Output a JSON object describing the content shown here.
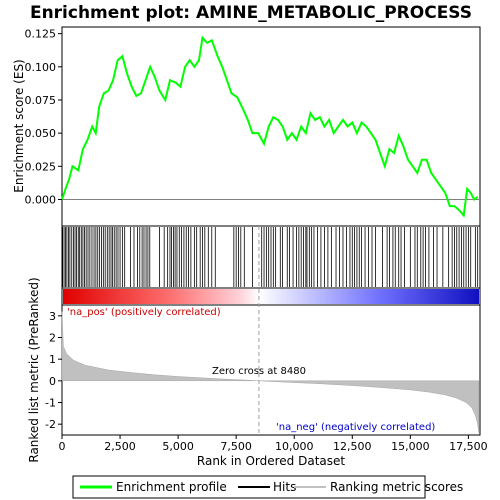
{
  "chart_data": {
    "type": "line",
    "title": "Enrichment plot: AMINE_METABOLIC_PROCESS",
    "xlabel": "Rank in Ordered Dataset",
    "ylabel_top": "Enrichment score (ES)",
    "ylabel_bottom": "Ranked list metric (PreRanked)",
    "x_range": [
      0,
      18000
    ],
    "x_ticks": [
      0,
      2500,
      5000,
      7500,
      10000,
      12500,
      15000,
      17500
    ],
    "x_tick_labels": [
      "0",
      "2,500",
      "5,000",
      "7,500",
      "10,000",
      "12,500",
      "15,000",
      "17,500"
    ],
    "es_ylim": [
      -0.02,
      0.13
    ],
    "es_ticks": [
      0.0,
      0.025,
      0.05,
      0.075,
      0.1,
      0.125
    ],
    "es_tick_labels": [
      "0.000",
      "0.025",
      "0.050",
      "0.075",
      "0.100",
      "0.125"
    ],
    "metric_ylim": [
      -2.5,
      3.5
    ],
    "metric_ticks": [
      -2,
      -1,
      0,
      1,
      2,
      3
    ],
    "metric_tick_labels": [
      "-2",
      "-1",
      "0",
      "1",
      "2",
      "3"
    ],
    "zero_cross": 8480,
    "zero_cross_label": "Zero cross at 8480",
    "pos_label": "'na_pos' (positively correlated)",
    "neg_label": "'na_neg' (negatively correlated)",
    "es_curve": [
      [
        0,
        0.0
      ],
      [
        150,
        0.008
      ],
      [
        300,
        0.015
      ],
      [
        450,
        0.025
      ],
      [
        700,
        0.022
      ],
      [
        900,
        0.038
      ],
      [
        1100,
        0.045
      ],
      [
        1300,
        0.055
      ],
      [
        1450,
        0.05
      ],
      [
        1600,
        0.07
      ],
      [
        1800,
        0.08
      ],
      [
        2000,
        0.082
      ],
      [
        2200,
        0.09
      ],
      [
        2400,
        0.105
      ],
      [
        2600,
        0.108
      ],
      [
        2800,
        0.095
      ],
      [
        3000,
        0.085
      ],
      [
        3200,
        0.078
      ],
      [
        3400,
        0.08
      ],
      [
        3600,
        0.09
      ],
      [
        3800,
        0.1
      ],
      [
        4000,
        0.092
      ],
      [
        4200,
        0.082
      ],
      [
        4450,
        0.075
      ],
      [
        4650,
        0.09
      ],
      [
        4900,
        0.088
      ],
      [
        5100,
        0.085
      ],
      [
        5300,
        0.1
      ],
      [
        5500,
        0.105
      ],
      [
        5700,
        0.1
      ],
      [
        5900,
        0.105
      ],
      [
        6050,
        0.122
      ],
      [
        6250,
        0.118
      ],
      [
        6450,
        0.12
      ],
      [
        6700,
        0.108
      ],
      [
        6900,
        0.1
      ],
      [
        7100,
        0.09
      ],
      [
        7300,
        0.08
      ],
      [
        7550,
        0.077
      ],
      [
        7800,
        0.068
      ],
      [
        8000,
        0.06
      ],
      [
        8200,
        0.05
      ],
      [
        8450,
        0.05
      ],
      [
        8700,
        0.042
      ],
      [
        8900,
        0.055
      ],
      [
        9100,
        0.062
      ],
      [
        9300,
        0.06
      ],
      [
        9500,
        0.055
      ],
      [
        9700,
        0.045
      ],
      [
        9900,
        0.05
      ],
      [
        10100,
        0.045
      ],
      [
        10300,
        0.055
      ],
      [
        10500,
        0.05
      ],
      [
        10700,
        0.065
      ],
      [
        10900,
        0.06
      ],
      [
        11100,
        0.062
      ],
      [
        11300,
        0.055
      ],
      [
        11500,
        0.06
      ],
      [
        11700,
        0.05
      ],
      [
        11900,
        0.055
      ],
      [
        12100,
        0.06
      ],
      [
        12300,
        0.055
      ],
      [
        12500,
        0.058
      ],
      [
        12700,
        0.05
      ],
      [
        12900,
        0.058
      ],
      [
        13100,
        0.055
      ],
      [
        13300,
        0.05
      ],
      [
        13500,
        0.045
      ],
      [
        13700,
        0.035
      ],
      [
        13900,
        0.025
      ],
      [
        14100,
        0.038
      ],
      [
        14300,
        0.035
      ],
      [
        14500,
        0.048
      ],
      [
        14700,
        0.04
      ],
      [
        14900,
        0.03
      ],
      [
        15100,
        0.025
      ],
      [
        15300,
        0.02
      ],
      [
        15500,
        0.03
      ],
      [
        15700,
        0.03
      ],
      [
        15900,
        0.02
      ],
      [
        16100,
        0.015
      ],
      [
        16300,
        0.01
      ],
      [
        16500,
        0.005
      ],
      [
        16700,
        -0.005
      ],
      [
        16900,
        -0.005
      ],
      [
        17100,
        -0.008
      ],
      [
        17300,
        -0.012
      ],
      [
        17450,
        0.008
      ],
      [
        17600,
        0.005
      ],
      [
        17750,
        0.0
      ],
      [
        17900,
        0.002
      ]
    ],
    "hits": [
      30,
      90,
      150,
      210,
      280,
      340,
      420,
      500,
      560,
      620,
      700,
      760,
      830,
      900,
      970,
      1040,
      1120,
      1200,
      1290,
      1380,
      1460,
      1540,
      1620,
      1700,
      1780,
      1860,
      1950,
      2030,
      2110,
      2180,
      2250,
      2330,
      2410,
      2500,
      2600,
      2700,
      2950,
      3100,
      3250,
      3350,
      3450,
      3530,
      3620,
      3700,
      3780,
      4200,
      4400,
      4550,
      4650,
      4720,
      4800,
      4870,
      4950,
      5050,
      5150,
      5250,
      5350,
      5450,
      5550,
      5700,
      5800,
      5950,
      6050,
      6150,
      6300,
      6450,
      6600,
      7400,
      7500,
      7600,
      7700,
      7850,
      8200,
      8600,
      8700,
      8800,
      8900,
      9000,
      9100,
      9200,
      9400,
      9500,
      9700,
      9800,
      9950,
      10100,
      10200,
      10300,
      10400,
      10500,
      10550,
      10650,
      10750,
      10850,
      11000,
      11150,
      11300,
      11450,
      11600,
      11800,
      11950,
      12100,
      12250,
      12400,
      12500,
      12600,
      12700,
      12800,
      12900,
      13050,
      13200,
      13350,
      13500,
      13800,
      14000,
      14100,
      14250,
      14350,
      14500,
      14600,
      14750,
      15000,
      15200,
      15300,
      15450,
      15550,
      15650,
      15800,
      16000,
      16150,
      16400,
      16650,
      16800,
      16900,
      17000,
      17100,
      17200,
      17300,
      17400,
      17500,
      17600,
      17800,
      17900
    ],
    "metric_curve": [
      [
        0,
        3.2
      ],
      [
        60,
        1.6
      ],
      [
        200,
        1.25
      ],
      [
        500,
        0.95
      ],
      [
        1000,
        0.72
      ],
      [
        2000,
        0.5
      ],
      [
        3000,
        0.38
      ],
      [
        4000,
        0.28
      ],
      [
        5000,
        0.2
      ],
      [
        6000,
        0.14
      ],
      [
        7000,
        0.08
      ],
      [
        8000,
        0.03
      ],
      [
        8480,
        0.0
      ],
      [
        9000,
        -0.03
      ],
      [
        10000,
        -0.08
      ],
      [
        11000,
        -0.13
      ],
      [
        12000,
        -0.19
      ],
      [
        13000,
        -0.25
      ],
      [
        14000,
        -0.33
      ],
      [
        15000,
        -0.42
      ],
      [
        15800,
        -0.52
      ],
      [
        16500,
        -0.65
      ],
      [
        17000,
        -0.8
      ],
      [
        17400,
        -1.0
      ],
      [
        17650,
        -1.25
      ],
      [
        17800,
        -1.6
      ],
      [
        17900,
        -2.0
      ],
      [
        17950,
        -2.4
      ]
    ]
  },
  "legend": {
    "items": [
      {
        "label": "Enrichment profile",
        "color": "#00ff00"
      },
      {
        "label": "Hits",
        "color": "#000000"
      },
      {
        "label": "Ranking metric scores",
        "color": "#c0c0c0"
      }
    ]
  },
  "colors": {
    "es_line": "#00ff00",
    "hit": "#000000",
    "metric_fill": "#c0c0c0",
    "pos_text": "#cc0000",
    "neg_text": "#0000cc",
    "zero_line": "#a0a0a0"
  }
}
